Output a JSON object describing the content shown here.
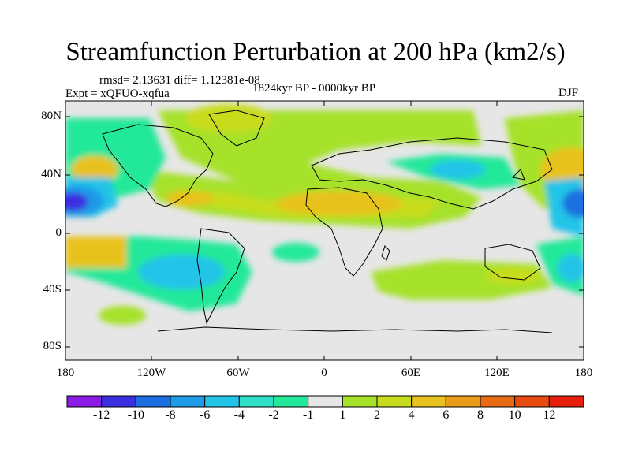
{
  "header": {
    "title": "Streamfunction Perturbation at 200 hPa (km2/s)",
    "stats": "rmsd= 2.13631 diff= 1.12381e-08",
    "period": "1824kyr BP - 0000kyr BP",
    "experiment": "Expt = xQFUO-xqfua",
    "season": "DJF"
  },
  "axes": {
    "y_labels": [
      "80N",
      "40N",
      "0",
      "40S",
      "80S"
    ],
    "x_labels": [
      "180",
      "120W",
      "60W",
      "0",
      "60E",
      "120E",
      "180"
    ]
  },
  "colorbar": {
    "colors": [
      "#8a1ce6",
      "#3a2ee0",
      "#1b6fe0",
      "#1e9be8",
      "#22c4e8",
      "#2ee0c8",
      "#22e89a",
      "#e6e6e6",
      "#a6e22a",
      "#c8dc1e",
      "#e8c21e",
      "#e89c18",
      "#e86a12",
      "#e84a10",
      "#e81e0c"
    ],
    "labels": [
      "-12",
      "-10",
      "-8",
      "-6",
      "-4",
      "-2",
      "-1",
      "1",
      "2",
      "4",
      "6",
      "8",
      "10",
      "12"
    ]
  },
  "chart_data": {
    "type": "heatmap",
    "title": "Streamfunction Perturbation at 200 hPa (km2/s)",
    "projection": "cylindrical equidistant",
    "lon_range": [
      -180,
      180
    ],
    "lat_range": [
      -90,
      90
    ],
    "contour_levels": [
      -12,
      -10,
      -8,
      -6,
      -4,
      -2,
      -1,
      1,
      2,
      4,
      6,
      8,
      10,
      12
    ],
    "features": [
      {
        "region": "North Atlantic / Europe",
        "value": 2
      },
      {
        "region": "Sahara / Arabia",
        "value": 6
      },
      {
        "region": "Greenland / Arctic",
        "value": 2
      },
      {
        "region": "Central Pacific subtropics",
        "value": -10
      },
      {
        "region": "Northwest Pacific",
        "value": 6
      },
      {
        "region": "South Atlantic / South America",
        "value": -4
      },
      {
        "region": "Southern Indian Ocean",
        "value": 2
      }
    ]
  }
}
